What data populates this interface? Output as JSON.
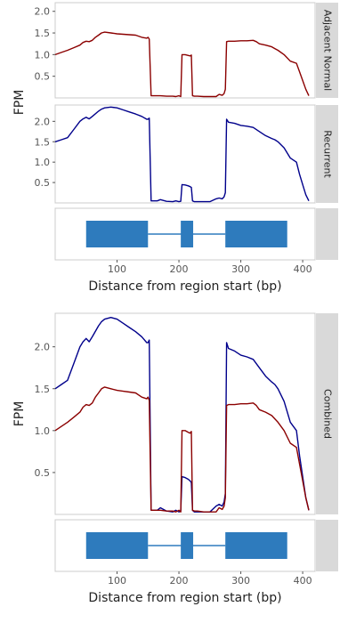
{
  "chart_data": [
    {
      "type": "line",
      "strip_label": "Adjacent Normal",
      "ylabel": "FPM",
      "xlim": [
        0,
        420
      ],
      "ylim": [
        0,
        2.2
      ],
      "yticks": [
        0.5,
        1.0,
        1.5,
        2.0
      ],
      "grid": false,
      "color": "#8b0000",
      "series": [
        {
          "x": [
            0,
            10,
            20,
            30,
            40,
            45,
            50,
            55,
            60,
            65,
            70,
            75,
            80,
            90,
            100,
            110,
            120,
            130,
            140,
            148,
            150,
            152,
            155,
            170,
            180,
            190,
            195,
            200,
            203,
            205,
            210,
            215,
            218,
            220,
            222,
            225,
            230,
            240,
            250,
            260,
            265,
            270,
            273,
            275,
            277,
            280,
            290,
            300,
            310,
            320,
            325,
            330,
            340,
            350,
            355,
            360,
            370,
            380,
            390,
            395,
            400,
            405,
            410
          ],
          "y": [
            1.0,
            1.05,
            1.1,
            1.16,
            1.22,
            1.28,
            1.31,
            1.3,
            1.33,
            1.4,
            1.45,
            1.5,
            1.52,
            1.5,
            1.48,
            1.47,
            1.46,
            1.45,
            1.4,
            1.38,
            1.4,
            1.36,
            0.05,
            0.05,
            0.04,
            0.04,
            0.03,
            0.05,
            0.03,
            1.0,
            1.0,
            0.98,
            0.97,
            0.99,
            0.05,
            0.04,
            0.04,
            0.03,
            0.03,
            0.03,
            0.08,
            0.06,
            0.1,
            0.2,
            1.3,
            1.31,
            1.31,
            1.32,
            1.32,
            1.33,
            1.3,
            1.25,
            1.22,
            1.18,
            1.14,
            1.1,
            1.0,
            0.85,
            0.8,
            0.6,
            0.4,
            0.2,
            0.05
          ]
        }
      ]
    },
    {
      "type": "line",
      "strip_label": "Recurrent",
      "ylabel": "FPM",
      "xlim": [
        0,
        420
      ],
      "ylim": [
        0,
        2.4
      ],
      "yticks": [
        0.5,
        1.0,
        1.5,
        2.0
      ],
      "grid": false,
      "color": "#00008b",
      "series": [
        {
          "x": [
            0,
            10,
            20,
            30,
            40,
            45,
            50,
            55,
            60,
            70,
            75,
            80,
            90,
            100,
            110,
            120,
            130,
            140,
            148,
            150,
            152,
            155,
            165,
            170,
            180,
            190,
            195,
            200,
            203,
            205,
            210,
            215,
            218,
            220,
            222,
            225,
            230,
            240,
            250,
            260,
            265,
            270,
            273,
            275,
            277,
            280,
            290,
            300,
            310,
            320,
            330,
            340,
            350,
            355,
            360,
            370,
            380,
            390,
            395,
            400,
            405,
            410
          ],
          "y": [
            1.5,
            1.55,
            1.6,
            1.8,
            2.0,
            2.06,
            2.1,
            2.06,
            2.12,
            2.25,
            2.3,
            2.33,
            2.35,
            2.33,
            2.28,
            2.23,
            2.18,
            2.12,
            2.05,
            2.05,
            2.08,
            0.05,
            0.05,
            0.08,
            0.04,
            0.03,
            0.05,
            0.03,
            0.04,
            0.45,
            0.44,
            0.42,
            0.4,
            0.38,
            0.05,
            0.03,
            0.03,
            0.03,
            0.03,
            0.1,
            0.12,
            0.1,
            0.15,
            0.25,
            2.05,
            1.98,
            1.95,
            1.9,
            1.88,
            1.85,
            1.75,
            1.65,
            1.58,
            1.55,
            1.5,
            1.35,
            1.1,
            1.0,
            0.7,
            0.45,
            0.2,
            0.05
          ]
        }
      ]
    },
    {
      "type": "gene_model",
      "xlabel": "Distance from region start (bp)",
      "xlim": [
        0,
        420
      ],
      "xticks": [
        100,
        200,
        300,
        400
      ],
      "color": "#2e7bbd",
      "exons": [
        [
          50,
          150
        ],
        [
          203,
          223
        ],
        [
          275,
          375
        ]
      ],
      "intron_line": [
        150,
        275
      ]
    },
    {
      "type": "line",
      "strip_label": "Combined",
      "ylabel": "FPM",
      "xlim": [
        0,
        420
      ],
      "ylim": [
        0,
        2.4
      ],
      "yticks": [
        0.5,
        1.0,
        1.5,
        2.0
      ],
      "grid": false,
      "series": [
        {
          "color": "#00008b",
          "x": [
            0,
            10,
            20,
            30,
            40,
            45,
            50,
            55,
            60,
            70,
            75,
            80,
            90,
            100,
            110,
            120,
            130,
            140,
            148,
            150,
            152,
            155,
            165,
            170,
            180,
            190,
            195,
            200,
            203,
            205,
            210,
            215,
            218,
            220,
            222,
            225,
            230,
            240,
            250,
            260,
            265,
            270,
            273,
            275,
            277,
            280,
            290,
            300,
            310,
            320,
            330,
            340,
            350,
            355,
            360,
            370,
            380,
            390,
            395,
            400,
            405,
            410
          ],
          "y": [
            1.5,
            1.55,
            1.6,
            1.8,
            2.0,
            2.06,
            2.1,
            2.06,
            2.12,
            2.25,
            2.3,
            2.33,
            2.35,
            2.33,
            2.28,
            2.23,
            2.18,
            2.12,
            2.05,
            2.05,
            2.08,
            0.05,
            0.05,
            0.08,
            0.04,
            0.03,
            0.05,
            0.03,
            0.04,
            0.45,
            0.44,
            0.42,
            0.4,
            0.38,
            0.05,
            0.03,
            0.03,
            0.03,
            0.03,
            0.1,
            0.12,
            0.1,
            0.15,
            0.25,
            2.05,
            1.98,
            1.95,
            1.9,
            1.88,
            1.85,
            1.75,
            1.65,
            1.58,
            1.55,
            1.5,
            1.35,
            1.1,
            1.0,
            0.7,
            0.45,
            0.2,
            0.05
          ]
        },
        {
          "color": "#8b0000",
          "x": [
            0,
            10,
            20,
            30,
            40,
            45,
            50,
            55,
            60,
            65,
            70,
            75,
            80,
            90,
            100,
            110,
            120,
            130,
            140,
            148,
            150,
            152,
            155,
            170,
            180,
            190,
            195,
            200,
            203,
            205,
            210,
            215,
            218,
            220,
            222,
            225,
            230,
            240,
            250,
            260,
            265,
            270,
            273,
            275,
            277,
            280,
            290,
            300,
            310,
            320,
            325,
            330,
            340,
            350,
            355,
            360,
            370,
            380,
            390,
            395,
            400,
            405,
            410
          ],
          "y": [
            1.0,
            1.05,
            1.1,
            1.16,
            1.22,
            1.28,
            1.31,
            1.3,
            1.33,
            1.4,
            1.45,
            1.5,
            1.52,
            1.5,
            1.48,
            1.47,
            1.46,
            1.45,
            1.4,
            1.38,
            1.4,
            1.36,
            0.05,
            0.05,
            0.04,
            0.04,
            0.03,
            0.05,
            0.03,
            1.0,
            1.0,
            0.98,
            0.97,
            0.99,
            0.05,
            0.04,
            0.04,
            0.03,
            0.03,
            0.03,
            0.08,
            0.06,
            0.1,
            0.2,
            1.3,
            1.31,
            1.31,
            1.32,
            1.32,
            1.33,
            1.3,
            1.25,
            1.22,
            1.18,
            1.14,
            1.1,
            1.0,
            0.85,
            0.8,
            0.6,
            0.4,
            0.2,
            0.05
          ]
        }
      ]
    },
    {
      "type": "gene_model",
      "xlabel": "Distance from region start (bp)",
      "xlim": [
        0,
        420
      ],
      "xticks": [
        100,
        200,
        300,
        400
      ],
      "color": "#2e7bbd",
      "exons": [
        [
          50,
          150
        ],
        [
          203,
          223
        ],
        [
          275,
          375
        ]
      ],
      "intron_line": [
        150,
        275
      ]
    }
  ]
}
